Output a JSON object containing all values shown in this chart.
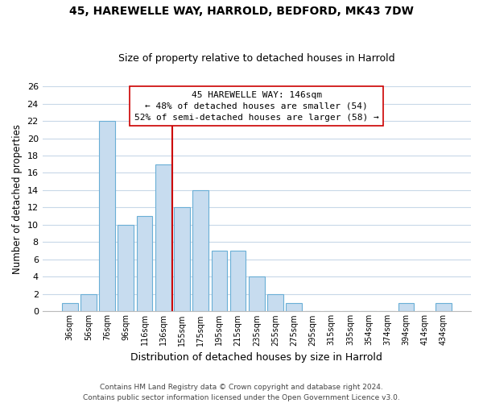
{
  "title1": "45, HAREWELLE WAY, HARROLD, BEDFORD, MK43 7DW",
  "title2": "Size of property relative to detached houses in Harrold",
  "xlabel": "Distribution of detached houses by size in Harrold",
  "ylabel": "Number of detached properties",
  "bar_labels": [
    "36sqm",
    "56sqm",
    "76sqm",
    "96sqm",
    "116sqm",
    "136sqm",
    "155sqm",
    "175sqm",
    "195sqm",
    "215sqm",
    "235sqm",
    "255sqm",
    "275sqm",
    "295sqm",
    "315sqm",
    "335sqm",
    "354sqm",
    "374sqm",
    "394sqm",
    "414sqm",
    "434sqm"
  ],
  "bar_heights": [
    1,
    2,
    22,
    10,
    11,
    17,
    12,
    14,
    7,
    7,
    4,
    2,
    1,
    0,
    0,
    0,
    0,
    0,
    1,
    0,
    1
  ],
  "bar_color": "#c7dcef",
  "bar_edge_color": "#6aafd6",
  "vline_color": "#cc0000",
  "ylim": [
    0,
    26
  ],
  "yticks": [
    0,
    2,
    4,
    6,
    8,
    10,
    12,
    14,
    16,
    18,
    20,
    22,
    24,
    26
  ],
  "annotation_title": "45 HAREWELLE WAY: 146sqm",
  "annotation_line1": "← 48% of detached houses are smaller (54)",
  "annotation_line2": "52% of semi-detached houses are larger (58) →",
  "annotation_box_color": "#ffffff",
  "annotation_box_edge": "#cc0000",
  "footer1": "Contains HM Land Registry data © Crown copyright and database right 2024.",
  "footer2": "Contains public sector information licensed under the Open Government Licence v3.0.",
  "background_color": "#ffffff",
  "grid_color": "#c8d8e8"
}
